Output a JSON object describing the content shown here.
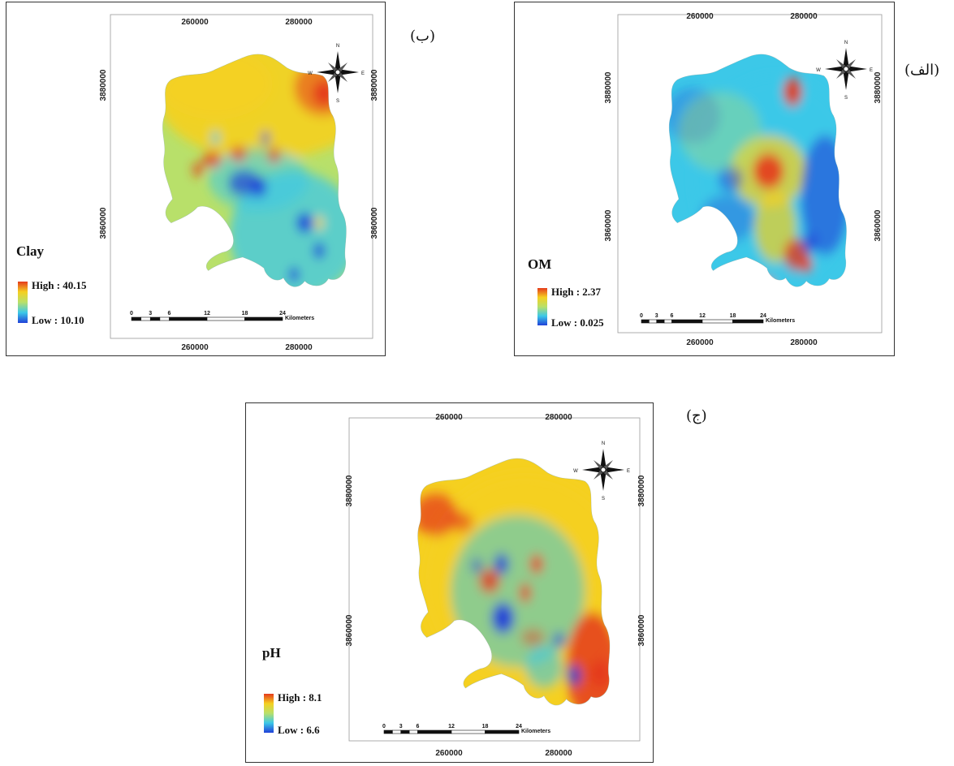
{
  "maps": [
    {
      "id": "om",
      "panel_label": "(الف)",
      "variable": "OM",
      "legend": {
        "high_label": "High : 2.37",
        "low_label": "Low : 0.025"
      },
      "x_ticks": [
        "260000",
        "280000"
      ],
      "y_ticks": [
        "3880000",
        "3860000"
      ],
      "scale_ticks": [
        "0",
        "3",
        "6",
        "12",
        "18",
        "24"
      ],
      "scale_unit": "Kilometers",
      "north_arrow": {
        "n": "N",
        "s": "S",
        "e": "E",
        "w": "W"
      }
    },
    {
      "id": "clay",
      "panel_label": "(ب)",
      "variable": "Clay",
      "legend": {
        "high_label": "High : 40.15",
        "low_label": "Low : 10.10"
      },
      "x_ticks": [
        "260000",
        "280000"
      ],
      "y_ticks": [
        "3880000",
        "3860000"
      ],
      "scale_ticks": [
        "0",
        "3",
        "6",
        "12",
        "18",
        "24"
      ],
      "scale_unit": "Kilometers",
      "north_arrow": {
        "n": "N",
        "s": "S",
        "e": "E",
        "w": "W"
      }
    },
    {
      "id": "ph",
      "panel_label": "(ج)",
      "variable": "pH",
      "legend": {
        "high_label": "High : 8.1",
        "low_label": "Low : 6.6"
      },
      "x_ticks": [
        "260000",
        "280000"
      ],
      "y_ticks": [
        "3880000",
        "3860000"
      ],
      "scale_ticks": [
        "0",
        "3",
        "6",
        "12",
        "18",
        "24"
      ],
      "scale_unit": "Kilometers",
      "north_arrow": {
        "n": "N",
        "s": "S",
        "e": "E",
        "w": "W"
      }
    }
  ],
  "colors": {
    "high": "#e53a1c",
    "mid_high": "#f5d020",
    "mid": "#b8e06a",
    "mid_low": "#3cc8e8",
    "low": "#2040d8",
    "frame": "#333333"
  }
}
